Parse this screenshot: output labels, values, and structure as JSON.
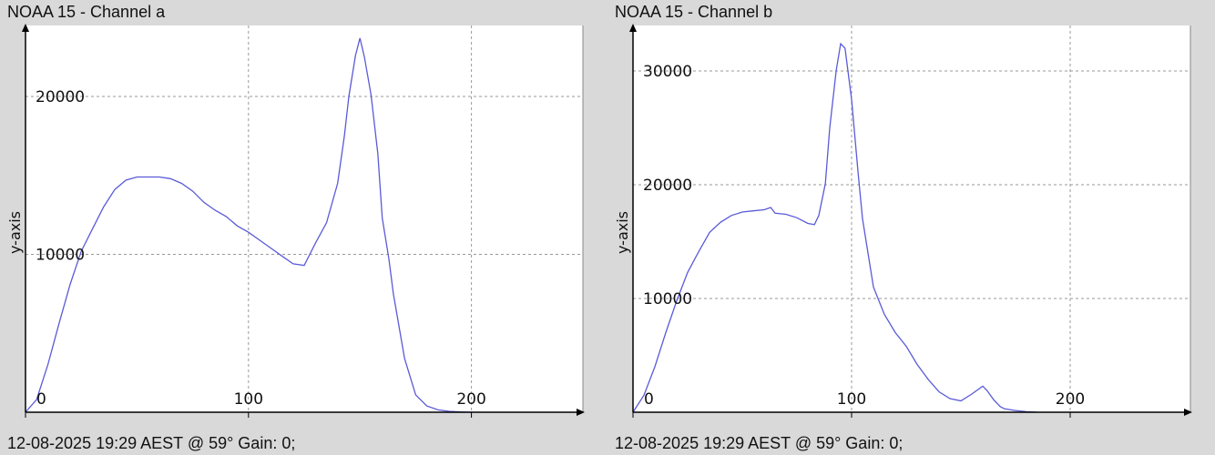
{
  "colors": {
    "background": "#d9d9d9",
    "plot_background": "#ffffff",
    "line": "#5a5ad8",
    "grid": "#999999",
    "axis": "#000000"
  },
  "chart_data": [
    {
      "type": "line",
      "title": "NOAA 15 - Channel a",
      "footer": "12-08-2025 19:29 AEST @ 59° Gain: 0;",
      "xlabel": "",
      "ylabel": "y-axis",
      "xlim": [
        0,
        250
      ],
      "ylim": [
        0,
        24500
      ],
      "x_ticks": [
        0,
        100,
        200
      ],
      "x_tick_labels": [
        "0",
        "100",
        "200"
      ],
      "y_ticks": [
        10000,
        20000
      ],
      "y_tick_labels": [
        "10000",
        "20000"
      ],
      "grid": true,
      "series": [
        {
          "x": [
            0,
            5,
            10,
            15,
            20,
            25,
            30,
            35,
            40,
            45,
            50,
            55,
            60,
            65,
            70,
            75,
            80,
            85,
            90,
            95,
            100,
            105,
            110,
            115,
            120,
            125,
            130,
            135,
            140,
            143,
            145,
            148,
            150,
            152,
            155,
            158,
            160,
            163,
            165,
            170,
            175,
            180,
            185,
            190,
            195,
            200
          ],
          "y": [
            0,
            800,
            3000,
            5600,
            8100,
            10200,
            11600,
            13000,
            14100,
            14700,
            14900,
            14900,
            14900,
            14800,
            14500,
            14000,
            13300,
            12800,
            12400,
            11800,
            11400,
            10900,
            10400,
            9900,
            9400,
            9300,
            10700,
            12000,
            14500,
            17500,
            20000,
            22600,
            23700,
            22500,
            20100,
            16400,
            12300,
            9700,
            7500,
            3400,
            1100,
            400,
            150,
            60,
            20,
            0
          ]
        }
      ]
    },
    {
      "type": "line",
      "title": "NOAA 15 - Channel b",
      "footer": "12-08-2025 19:29 AEST @ 59° Gain: 0;",
      "xlabel": "",
      "ylabel": "y-axis",
      "xlim": [
        0,
        255
      ],
      "ylim": [
        0,
        34000
      ],
      "x_ticks": [
        0,
        100,
        200
      ],
      "x_tick_labels": [
        "0",
        "100",
        "200"
      ],
      "y_ticks": [
        10000,
        20000,
        30000
      ],
      "y_tick_labels": [
        "10000",
        "20000",
        "30000"
      ],
      "grid": true,
      "series": [
        {
          "x": [
            0,
            5,
            10,
            15,
            20,
            25,
            30,
            35,
            40,
            45,
            50,
            55,
            60,
            63,
            65,
            70,
            75,
            80,
            83,
            85,
            88,
            90,
            93,
            95,
            97,
            100,
            103,
            105,
            110,
            115,
            120,
            125,
            130,
            135,
            140,
            145,
            150,
            155,
            160,
            162,
            165,
            168,
            170,
            175,
            180,
            185
          ],
          "y": [
            0,
            1500,
            4000,
            7000,
            9800,
            12300,
            14100,
            15800,
            16700,
            17300,
            17600,
            17700,
            17800,
            18000,
            17500,
            17400,
            17100,
            16600,
            16500,
            17300,
            20100,
            25000,
            30100,
            32400,
            32000,
            27500,
            21000,
            17000,
            11000,
            8600,
            7000,
            5800,
            4200,
            2900,
            1800,
            1200,
            1000,
            1600,
            2300,
            1900,
            1100,
            500,
            300,
            150,
            50,
            0
          ]
        }
      ]
    }
  ]
}
